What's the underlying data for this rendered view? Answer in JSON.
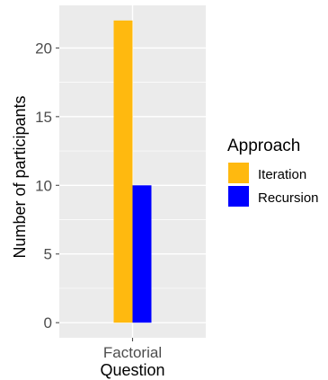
{
  "chart_data": {
    "type": "bar",
    "categories": [
      "Factorial"
    ],
    "series": [
      {
        "name": "Iteration",
        "values": [
          22
        ],
        "color": "#FFB90F"
      },
      {
        "name": "Recursion",
        "values": [
          10
        ],
        "color": "#0000FF"
      }
    ],
    "xlabel": "Question",
    "ylabel": "Number of participants",
    "ylim": [
      -1.1,
      23.1
    ],
    "yticks": [
      0,
      5,
      10,
      15,
      20
    ],
    "grid": true,
    "panel_background": "#EBEBEB",
    "grid_color": "#FFFFFF",
    "legend": {
      "title": "Approach",
      "placement": "right"
    }
  }
}
